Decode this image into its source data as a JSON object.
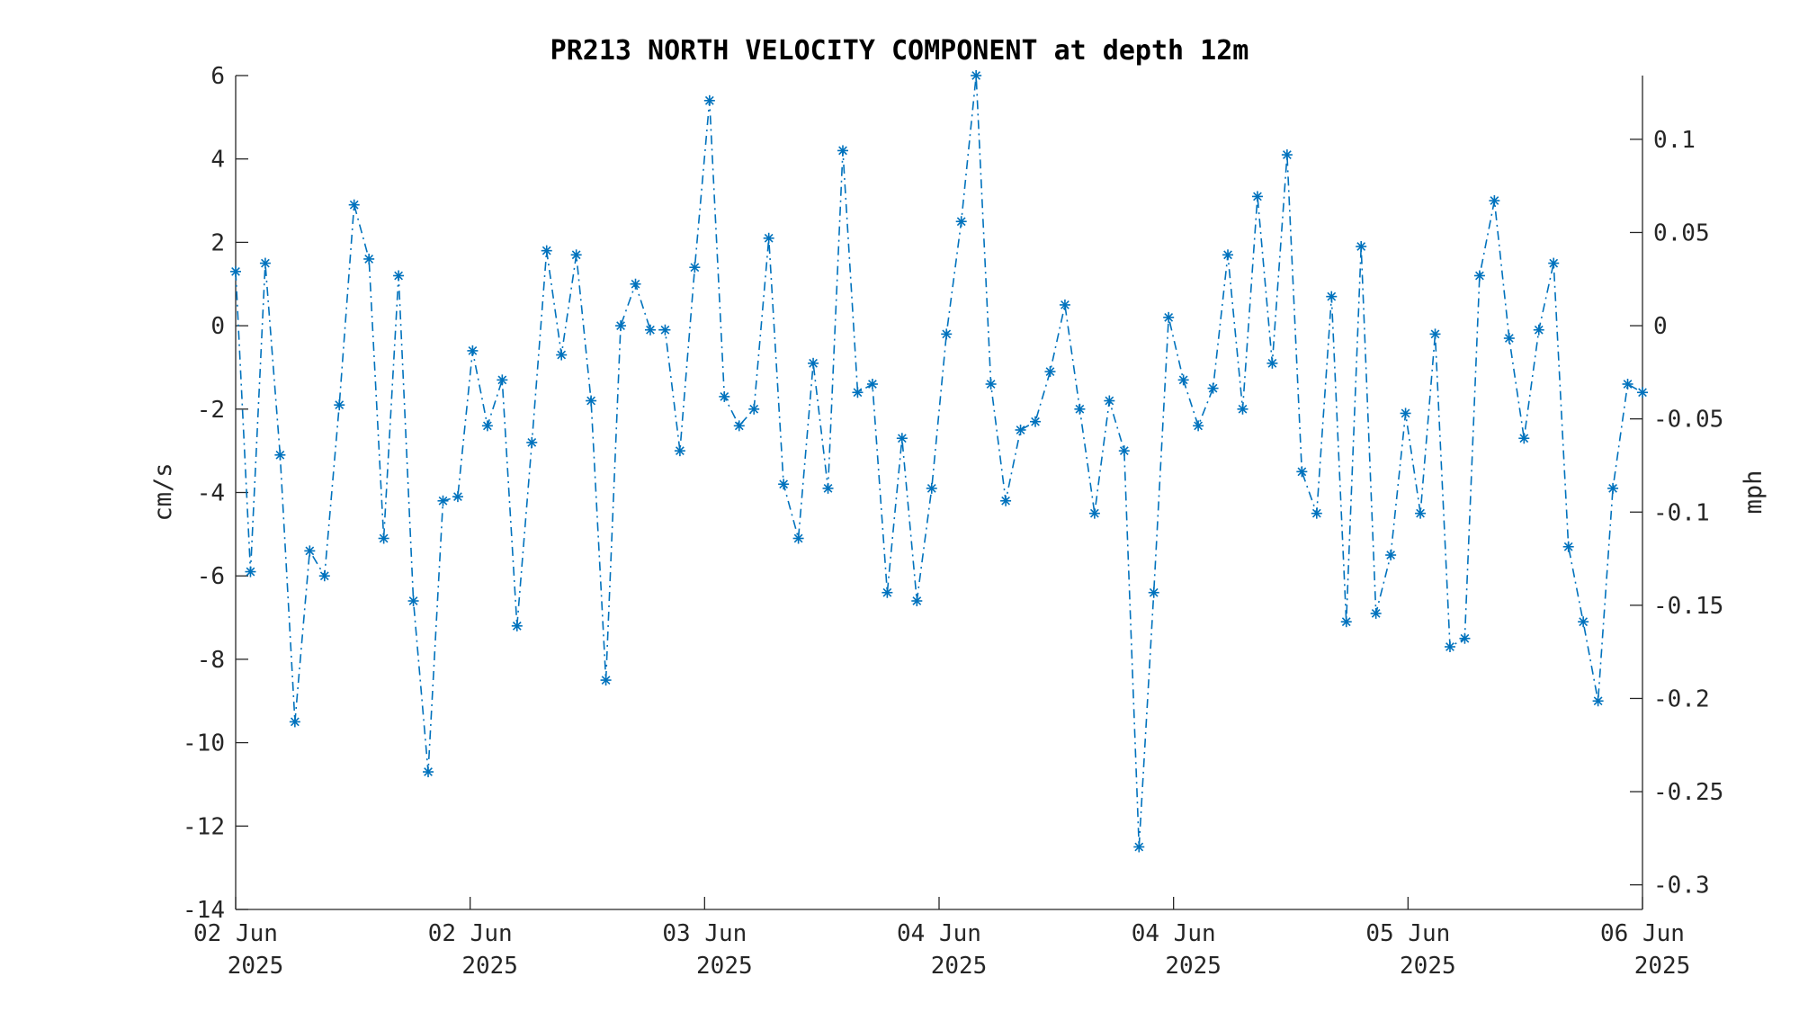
{
  "chart_data": {
    "type": "line",
    "title": "PR213 NORTH VELOCITY COMPONENT at depth 12m",
    "ylabel": "cm/s",
    "y2label": "mph",
    "ylim": [
      -14,
      6
    ],
    "y2lim": [
      -0.3132,
      0.1342
    ],
    "yticks": [
      -14,
      -12,
      -10,
      -8,
      -6,
      -4,
      -2,
      0,
      2,
      4,
      6
    ],
    "y2ticks": [
      -0.3,
      -0.25,
      -0.2,
      -0.15,
      -0.1,
      -0.05,
      0,
      0.05,
      0.1
    ],
    "y2ticklabels": [
      "-0.3",
      "-0.25",
      "-0.2",
      "-0.15",
      "-0.1",
      "-0.05",
      "0",
      "0.05",
      "0.1"
    ],
    "xticklabels": [
      [
        "02 Jun",
        "2025"
      ],
      [
        "02 Jun",
        "2025"
      ],
      [
        "03 Jun",
        "2025"
      ],
      [
        "04 Jun",
        "2025"
      ],
      [
        "04 Jun",
        "2025"
      ],
      [
        "05 Jun",
        "2025"
      ],
      [
        "06 Jun",
        "2025"
      ]
    ],
    "grid": false,
    "series": [
      {
        "color": "#0072BD",
        "line_style": "dash-dot",
        "marker": "asterisk",
        "values": [
          1.3,
          -5.9,
          1.5,
          -3.1,
          -9.5,
          -5.4,
          -6.0,
          -1.9,
          2.9,
          1.6,
          -5.1,
          1.2,
          -6.6,
          -10.7,
          -4.2,
          -4.1,
          -0.6,
          -2.4,
          -1.3,
          -7.2,
          -2.8,
          1.8,
          -0.7,
          1.7,
          -1.8,
          -8.5,
          0.0,
          1.0,
          -0.1,
          -0.1,
          -3.0,
          1.4,
          5.4,
          -1.7,
          -2.4,
          -2.0,
          2.1,
          -3.8,
          -5.1,
          -0.9,
          -3.9,
          4.2,
          -1.6,
          -1.4,
          -6.4,
          -2.7,
          -6.6,
          -3.9,
          -0.2,
          2.5,
          6.0,
          -1.4,
          -4.2,
          -2.5,
          -2.3,
          -1.1,
          0.5,
          -2.0,
          -4.5,
          -1.8,
          -3.0,
          -12.5,
          -6.4,
          0.2,
          -1.3,
          -2.4,
          -1.5,
          1.7,
          -2.0,
          3.1,
          -0.9,
          4.1,
          -3.5,
          -4.5,
          0.7,
          -7.1,
          1.9,
          -6.9,
          -5.5,
          -2.1,
          -4.5,
          -0.2,
          -7.7,
          -7.5,
          1.2,
          3.0,
          -0.3,
          -2.7,
          -0.1,
          1.5,
          -5.3,
          -7.1,
          -9.0,
          -3.9,
          -1.4,
          -1.6
        ]
      }
    ]
  }
}
